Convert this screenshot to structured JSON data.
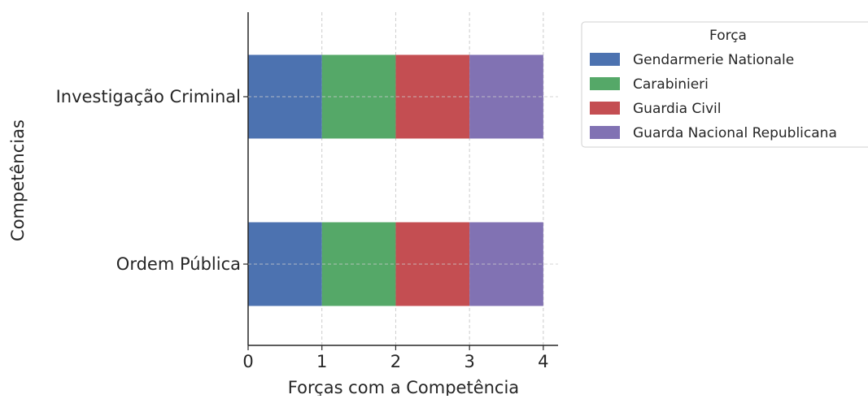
{
  "chart_data": {
    "type": "bar",
    "orientation": "horizontal",
    "stacked": true,
    "categories": [
      "Investigação Criminal",
      "Ordem Pública"
    ],
    "series": [
      {
        "name": "Gendarmerie Nationale",
        "color": "#4c72b0",
        "values": [
          1,
          1
        ]
      },
      {
        "name": "Carabinieri",
        "color": "#55a868",
        "values": [
          1,
          1
        ]
      },
      {
        "name": "Guardia Civil",
        "color": "#c44e52",
        "values": [
          1,
          1
        ]
      },
      {
        "name": "Guarda Nacional Republicana",
        "color": "#8172b3",
        "values": [
          1,
          1
        ]
      }
    ],
    "xlabel": "Forças com a Competência",
    "ylabel": "Competências",
    "xlim": [
      0,
      4.2
    ],
    "xticks": [
      0,
      1,
      2,
      3,
      4
    ],
    "legend_title": "Força",
    "legend_position": "outside-top-right",
    "grid": true
  }
}
